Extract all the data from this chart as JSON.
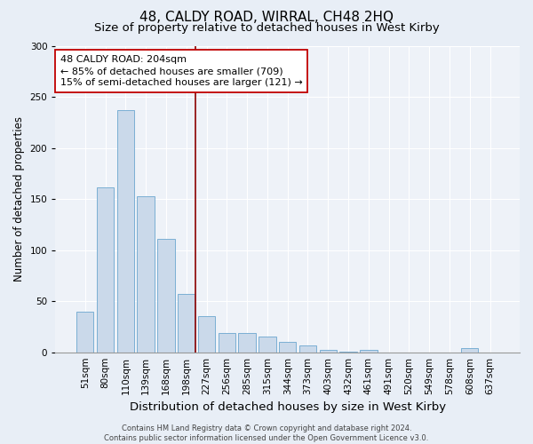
{
  "title": "48, CALDY ROAD, WIRRAL, CH48 2HQ",
  "subtitle": "Size of property relative to detached houses in West Kirby",
  "xlabel": "Distribution of detached houses by size in West Kirby",
  "ylabel": "Number of detached properties",
  "categories": [
    "51sqm",
    "80sqm",
    "110sqm",
    "139sqm",
    "168sqm",
    "198sqm",
    "227sqm",
    "256sqm",
    "285sqm",
    "315sqm",
    "344sqm",
    "373sqm",
    "403sqm",
    "432sqm",
    "461sqm",
    "491sqm",
    "520sqm",
    "549sqm",
    "578sqm",
    "608sqm",
    "637sqm"
  ],
  "values": [
    40,
    161,
    237,
    153,
    111,
    57,
    35,
    19,
    19,
    15,
    10,
    7,
    2,
    1,
    2,
    0,
    0,
    0,
    0,
    4,
    0
  ],
  "bar_color": "#cad9ea",
  "bar_edge_color": "#7aafd4",
  "vline_pos": 5.45,
  "vline_color": "#8b0000",
  "annotation_text": "48 CALDY ROAD: 204sqm\n← 85% of detached houses are smaller (709)\n15% of semi-detached houses are larger (121) →",
  "annotation_box_facecolor": "#ffffff",
  "annotation_box_edgecolor": "#c00000",
  "ylim": [
    0,
    300
  ],
  "yticks": [
    0,
    50,
    100,
    150,
    200,
    250,
    300
  ],
  "title_fontsize": 11,
  "subtitle_fontsize": 9.5,
  "xlabel_fontsize": 9.5,
  "ylabel_fontsize": 8.5,
  "tick_fontsize": 7.5,
  "annotation_fontsize": 8,
  "footer": "Contains HM Land Registry data © Crown copyright and database right 2024.\nContains public sector information licensed under the Open Government Licence v3.0.",
  "footer_fontsize": 6,
  "background_color": "#e8eef6",
  "plot_background_color": "#eef2f8"
}
